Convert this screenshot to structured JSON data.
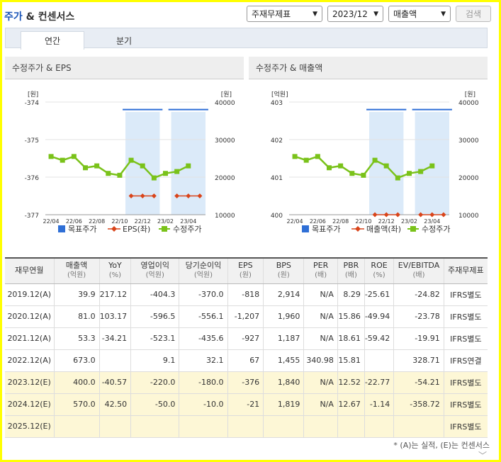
{
  "header": {
    "title_blue": "주가",
    "title_rest": " & 컨센서스"
  },
  "controls": {
    "statement": "주재무제표",
    "period": "2023/12",
    "metric": "매출액",
    "search": "검색"
  },
  "tabs": [
    {
      "label": "연간"
    },
    {
      "label": "분기"
    }
  ],
  "colors": {
    "target": "#2f6fd6",
    "eps": "#d9441a",
    "price": "#7ac21a",
    "band": "#cfe3f7"
  },
  "charts": [
    {
      "heading": "수정주가 & EPS",
      "left_unit": "[원]",
      "right_unit": "[원]",
      "left_ticks": [
        "-374",
        "-375",
        "-376",
        "-377"
      ],
      "right_ticks": [
        "40000",
        "30000",
        "20000",
        "10000"
      ],
      "x_ticks": [
        "22/04",
        "22/06",
        "22/08",
        "22/10",
        "22/12",
        "23/02",
        "23/04"
      ],
      "legend": [
        "목표주가",
        "EPS(좌)",
        "수정주가"
      ]
    },
    {
      "heading": "수정주가 & 매출액",
      "left_unit": "[억원]",
      "right_unit": "[원]",
      "left_ticks": [
        "403",
        "402",
        "401",
        "400"
      ],
      "right_ticks": [
        "40000",
        "30000",
        "20000",
        "10000"
      ],
      "x_ticks": [
        "22/04",
        "22/06",
        "22/08",
        "22/10",
        "22/12",
        "23/02",
        "23/04"
      ],
      "legend": [
        "목표주가",
        "매출액(좌)",
        "수정주가"
      ]
    }
  ],
  "chart_data": [
    {
      "type": "line",
      "title": "수정주가 & EPS",
      "ylim_left": [
        -377,
        -374
      ],
      "ylim_right": [
        10000,
        40000
      ],
      "series": [
        {
          "name": "목표주가",
          "axis": "right",
          "segments": [
            [
              21.0,
              38000
            ],
            [
              22.0,
              38000
            ],
            [
              23.0,
              38000
            ],
            [
              25.0,
              38000
            ],
            [
              26.0,
              38000
            ],
            [
              27.0,
              38000
            ]
          ]
        },
        {
          "name": "EPS(좌)",
          "axis": "left",
          "points": [
            [
              21.0,
              -376.5
            ],
            [
              22.0,
              -376.5
            ],
            [
              23.0,
              -376.5
            ],
            [
              25.0,
              -376.5
            ],
            [
              26.0,
              -376.5
            ],
            [
              27.0,
              -376.5
            ]
          ]
        },
        {
          "name": "수정주가",
          "axis": "right",
          "points": [
            [
              14.0,
              25500
            ],
            [
              15.0,
              24500
            ],
            [
              16.0,
              25500
            ],
            [
              17.0,
              22500
            ],
            [
              18.0,
              23000
            ],
            [
              19.0,
              21000
            ],
            [
              20.0,
              20500
            ],
            [
              21.0,
              24500
            ],
            [
              22.0,
              23000
            ],
            [
              23.0,
              19800
            ],
            [
              24.0,
              21000
            ],
            [
              25.0,
              21500
            ],
            [
              26.0,
              23000
            ]
          ]
        }
      ]
    },
    {
      "type": "line",
      "title": "수정주가 & 매출액",
      "ylim_left": [
        400,
        403
      ],
      "ylim_right": [
        10000,
        40000
      ],
      "series": [
        {
          "name": "목표주가",
          "axis": "right",
          "segments": [
            [
              21.0,
              38000
            ],
            [
              22.0,
              38000
            ],
            [
              23.0,
              38000
            ],
            [
              25.0,
              38000
            ],
            [
              26.0,
              38000
            ],
            [
              27.0,
              38000
            ]
          ]
        },
        {
          "name": "매출액(좌)",
          "axis": "left",
          "points": [
            [
              21.0,
              400
            ],
            [
              22.0,
              400
            ],
            [
              23.0,
              400
            ],
            [
              25.0,
              400
            ],
            [
              26.0,
              400
            ],
            [
              27.0,
              400
            ]
          ]
        },
        {
          "name": "수정주가",
          "axis": "right",
          "points": [
            [
              14.0,
              25500
            ],
            [
              15.0,
              24500
            ],
            [
              16.0,
              25500
            ],
            [
              17.0,
              22500
            ],
            [
              18.0,
              23000
            ],
            [
              19.0,
              21000
            ],
            [
              20.0,
              20500
            ],
            [
              21.0,
              24500
            ],
            [
              22.0,
              23000
            ],
            [
              23.0,
              19800
            ],
            [
              24.0,
              21000
            ],
            [
              25.0,
              21500
            ],
            [
              26.0,
              23000
            ]
          ]
        }
      ]
    }
  ],
  "table": {
    "headers": [
      {
        "label": "재무연월",
        "unit": ""
      },
      {
        "label": "매출액",
        "unit": "(억원)"
      },
      {
        "label": "YoY",
        "unit": "(%)"
      },
      {
        "label": "영업이익",
        "unit": "(억원)"
      },
      {
        "label": "당기순이익",
        "unit": "(억원)"
      },
      {
        "label": "EPS",
        "unit": "(원)"
      },
      {
        "label": "BPS",
        "unit": "(원)"
      },
      {
        "label": "PER",
        "unit": "(배)"
      },
      {
        "label": "PBR",
        "unit": "(배)"
      },
      {
        "label": "ROE",
        "unit": "(%)"
      },
      {
        "label": "EV/EBITDA",
        "unit": "(배)"
      },
      {
        "label": "주재무제표",
        "unit": ""
      }
    ],
    "rows": [
      {
        "est": false,
        "cells": [
          "2019.12(A)",
          "39.9",
          "217.12",
          "-404.3",
          "-370.0",
          "-818",
          "2,914",
          "N/A",
          "8.29",
          "-25.61",
          "-24.82",
          "IFRS별도"
        ]
      },
      {
        "est": false,
        "cells": [
          "2020.12(A)",
          "81.0",
          "103.17",
          "-596.5",
          "-556.1",
          "-1,207",
          "1,960",
          "N/A",
          "15.86",
          "-49.94",
          "-23.78",
          "IFRS별도"
        ]
      },
      {
        "est": false,
        "cells": [
          "2021.12(A)",
          "53.3",
          "-34.21",
          "-523.1",
          "-435.6",
          "-927",
          "1,187",
          "N/A",
          "18.61",
          "-59.42",
          "-19.91",
          "IFRS별도"
        ]
      },
      {
        "est": false,
        "cells": [
          "2022.12(A)",
          "673.0",
          "",
          "9.1",
          "32.1",
          "67",
          "1,455",
          "340.98",
          "15.81",
          "",
          "328.71",
          "IFRS연결"
        ]
      },
      {
        "est": true,
        "cells": [
          "2023.12(E)",
          "400.0",
          "-40.57",
          "-220.0",
          "-180.0",
          "-376",
          "1,840",
          "N/A",
          "12.52",
          "-22.77",
          "-54.21",
          "IFRS별도"
        ]
      },
      {
        "est": true,
        "cells": [
          "2024.12(E)",
          "570.0",
          "42.50",
          "-50.0",
          "-10.0",
          "-21",
          "1,819",
          "N/A",
          "12.67",
          "-1.14",
          "-358.72",
          "IFRS별도"
        ]
      },
      {
        "est": true,
        "cells": [
          "2025.12(E)",
          "",
          "",
          "",
          "",
          "",
          "",
          "",
          "",
          "",
          "",
          "IFRS별도"
        ]
      }
    ]
  },
  "footnote": "* (A)는 실적, (E)는 컨센서스"
}
